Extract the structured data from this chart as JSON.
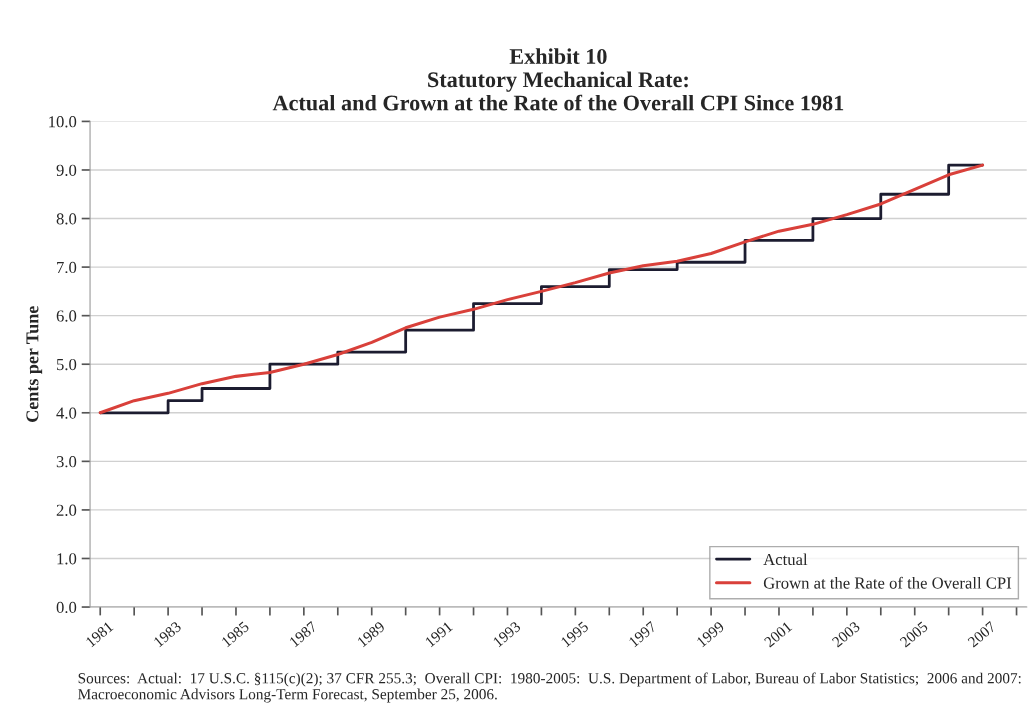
{
  "chart_data": {
    "type": "line",
    "title": "Exhibit 10\nStatutory Mechanical Rate:\nActual and Grown at the Rate of the Overall CPI Since 1981",
    "ylabel": "Cents per Tune",
    "series": [
      {
        "name": "Actual",
        "type": "step",
        "color": "#1c1c30",
        "x": [
          1981,
          1983,
          1984,
          1986,
          1988,
          1990,
          1992,
          1994,
          1996,
          1998,
          2000,
          2002,
          2004,
          2006,
          2007
        ],
        "values": [
          4.0,
          4.25,
          4.5,
          5.0,
          5.25,
          5.7,
          6.25,
          6.6,
          6.95,
          7.1,
          7.55,
          8.0,
          8.5,
          9.1,
          9.1
        ]
      },
      {
        "name": "Grown at the Rate of the Overall CPI",
        "color": "#d9403a",
        "x": [
          1981,
          1982,
          1983,
          1984,
          1985,
          1986,
          1987,
          1988,
          1989,
          1990,
          1991,
          1992,
          1993,
          1994,
          1995,
          1996,
          1997,
          1998,
          1999,
          2000,
          2001,
          2002,
          2003,
          2004,
          2005,
          2006,
          2007
        ],
        "values": [
          4.0,
          4.25,
          4.4,
          4.6,
          4.75,
          4.83,
          5.0,
          5.2,
          5.45,
          5.75,
          5.97,
          6.13,
          6.33,
          6.5,
          6.68,
          6.88,
          7.03,
          7.12,
          7.28,
          7.52,
          7.74,
          7.88,
          8.08,
          8.3,
          8.6,
          8.9,
          9.1
        ]
      }
    ],
    "xlim": [
      1980.7,
      2008.3
    ],
    "xticks": [
      1981,
      {
        "value": 1982,
        "label": null
      },
      1983,
      {
        "value": 1984,
        "label": null
      },
      1985,
      {
        "value": 1986,
        "label": null
      },
      1987,
      {
        "value": 1988,
        "label": null
      },
      1989,
      {
        "value": 1990,
        "label": null
      },
      1991,
      {
        "value": 1992,
        "label": null
      },
      1993,
      {
        "value": 1994,
        "label": null
      },
      1995,
      {
        "value": 1996,
        "label": null
      },
      1997,
      {
        "value": 1998,
        "label": null
      },
      1999,
      {
        "value": 2000,
        "label": null
      },
      2001,
      {
        "value": 2002,
        "label": null
      },
      2003,
      {
        "value": 2004,
        "label": null
      },
      2005,
      {
        "value": 2006,
        "label": null
      },
      2007,
      {
        "value": 2008,
        "label": null
      }
    ],
    "ylim": [
      0,
      10
    ],
    "yticks": [
      {
        "value": 0,
        "label": "0.0"
      },
      {
        "value": 1,
        "label": "1.0"
      },
      {
        "value": 2,
        "label": "2.0"
      },
      {
        "value": 3,
        "label": "3.0"
      },
      {
        "value": 4,
        "label": "4.0"
      },
      {
        "value": 5,
        "label": "5.0"
      },
      {
        "value": 6,
        "label": "6.0"
      },
      {
        "value": 7,
        "label": "7.0"
      },
      {
        "value": 8,
        "label": "8.0"
      },
      {
        "value": 9,
        "label": "9.0"
      },
      {
        "value": 10,
        "label": "10.0"
      }
    ],
    "grid": "y",
    "legend": "bottom right",
    "annotations": [
      "Sources:  Actual:  17 U.S.C. §115(c)(2); 37 CFR 255.3;  Overall CPI:  1980-2005:  U.S. Department of Labor, Bureau of Labor Statistics;  2006 and 2007:  Macroeconomic Advisors Long-Term Forecast, September 25, 2006."
    ]
  }
}
